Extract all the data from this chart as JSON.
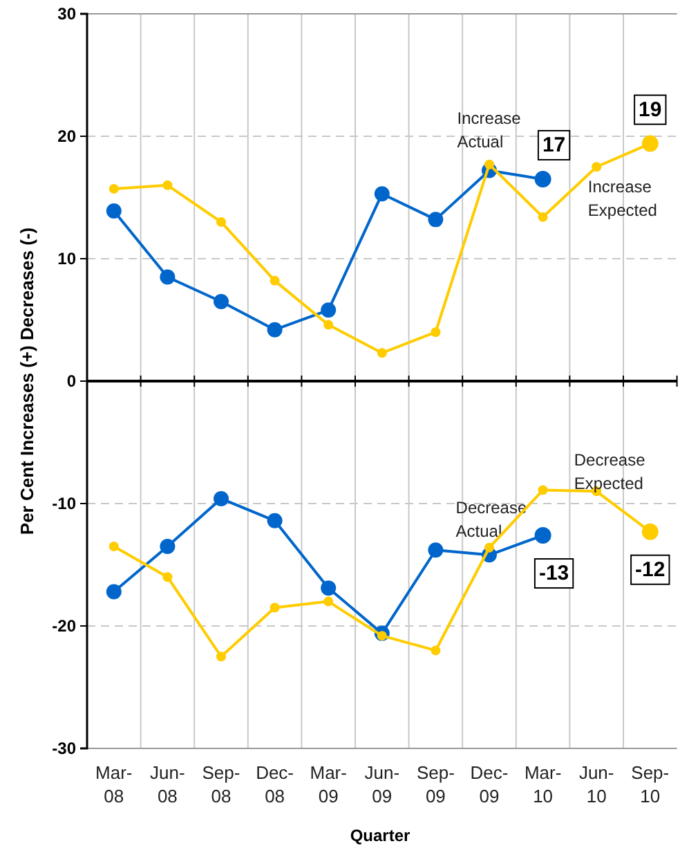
{
  "chart_data": {
    "type": "line",
    "xlabel": "Quarter",
    "ylabel": "Per Cent Increases (+) Decreases (-)",
    "categories": [
      "Mar-08",
      "Jun-08",
      "Sep-08",
      "Dec-08",
      "Mar-09",
      "Jun-09",
      "Sep-09",
      "Dec-09",
      "Mar-10",
      "Jun-10",
      "Sep-10"
    ],
    "ylim": [
      -30,
      30
    ],
    "yticks": [
      -30,
      -20,
      -10,
      0,
      10,
      20,
      30
    ],
    "grid": true,
    "marker": "circle",
    "line_style": "solid",
    "series": [
      {
        "name": "Increase Actual",
        "color": "#0066cc",
        "values": [
          13.9,
          8.5,
          6.5,
          4.2,
          5.8,
          15.3,
          13.2,
          17.2,
          16.5,
          null,
          null
        ],
        "value_labels": [
          null,
          null,
          null,
          null,
          null,
          null,
          null,
          null,
          "17",
          null,
          null
        ]
      },
      {
        "name": "Increase Expected",
        "color": "#ffcc00",
        "values": [
          15.7,
          16.0,
          13.0,
          8.2,
          4.6,
          2.3,
          4.0,
          17.7,
          13.4,
          17.5,
          19.4
        ],
        "value_labels": [
          null,
          null,
          null,
          null,
          null,
          null,
          null,
          null,
          null,
          null,
          "19"
        ]
      },
      {
        "name": "Decrease Actual",
        "color": "#0066cc",
        "values": [
          -17.2,
          -13.5,
          -9.6,
          -11.4,
          -16.9,
          -20.6,
          -13.8,
          -14.2,
          -12.6,
          null,
          null
        ],
        "value_labels": [
          null,
          null,
          null,
          null,
          null,
          null,
          null,
          null,
          "-13",
          null,
          null
        ]
      },
      {
        "name": "Decrease Expected",
        "color": "#ffcc00",
        "values": [
          -13.5,
          -16.0,
          -22.5,
          -18.5,
          -18.0,
          -20.8,
          -22.0,
          -13.6,
          -8.9,
          -9.0,
          -12.3
        ],
        "value_labels": [
          null,
          null,
          null,
          null,
          null,
          null,
          null,
          null,
          null,
          null,
          "-12"
        ]
      }
    ]
  }
}
